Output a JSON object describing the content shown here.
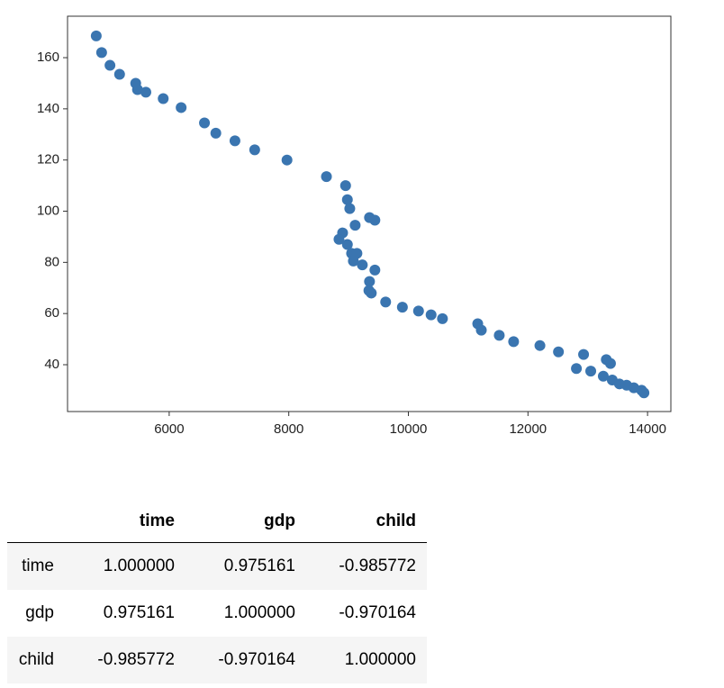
{
  "chart_data": {
    "type": "scatter",
    "color": "#3a75b0",
    "x": [
      4780,
      4870,
      5010,
      5170,
      5440,
      5470,
      5610,
      5900,
      6200,
      6590,
      6780,
      7100,
      7430,
      7970,
      8630,
      8950,
      8980,
      9020,
      9110,
      9350,
      9440,
      8900,
      8840,
      8980,
      9050,
      9140,
      9080,
      9230,
      9440,
      9350,
      9340,
      9380,
      9620,
      9900,
      10170,
      10380,
      10570,
      11160,
      11220,
      11520,
      11760,
      12200,
      12510,
      12930,
      13310,
      13380,
      12810,
      13050,
      13260,
      13410,
      13530,
      13650,
      13770,
      13900,
      13940
    ],
    "values": [
      168.5,
      162,
      157,
      153.5,
      150,
      147.5,
      146.5,
      144,
      140.5,
      134.5,
      130.5,
      127.5,
      124,
      120,
      113.5,
      110,
      104.5,
      101,
      94.5,
      97.5,
      96.5,
      91.5,
      89,
      87,
      83.5,
      83.5,
      80.5,
      79,
      77,
      72.5,
      69,
      68,
      64.5,
      62.5,
      61,
      59.5,
      58,
      56,
      53.5,
      51.5,
      49,
      47.5,
      45,
      44,
      42,
      40.5,
      38.5,
      37.5,
      35.5,
      34,
      32.5,
      32,
      31,
      30,
      29
    ],
    "xlim": [
      4300,
      14390
    ],
    "ylim": [
      21.7,
      176.2
    ],
    "xticks": [
      6000,
      8000,
      10000,
      12000,
      14000
    ],
    "yticks": [
      40,
      60,
      80,
      100,
      120,
      140,
      160
    ]
  },
  "table": {
    "columns": [
      "time",
      "gdp",
      "child"
    ],
    "rows": [
      {
        "label": "time",
        "cells": [
          "1.000000",
          "0.975161",
          "-0.985772"
        ]
      },
      {
        "label": "gdp",
        "cells": [
          "0.975161",
          "1.000000",
          "-0.970164"
        ]
      },
      {
        "label": "child",
        "cells": [
          "-0.985772",
          "-0.970164",
          "1.000000"
        ]
      }
    ]
  }
}
